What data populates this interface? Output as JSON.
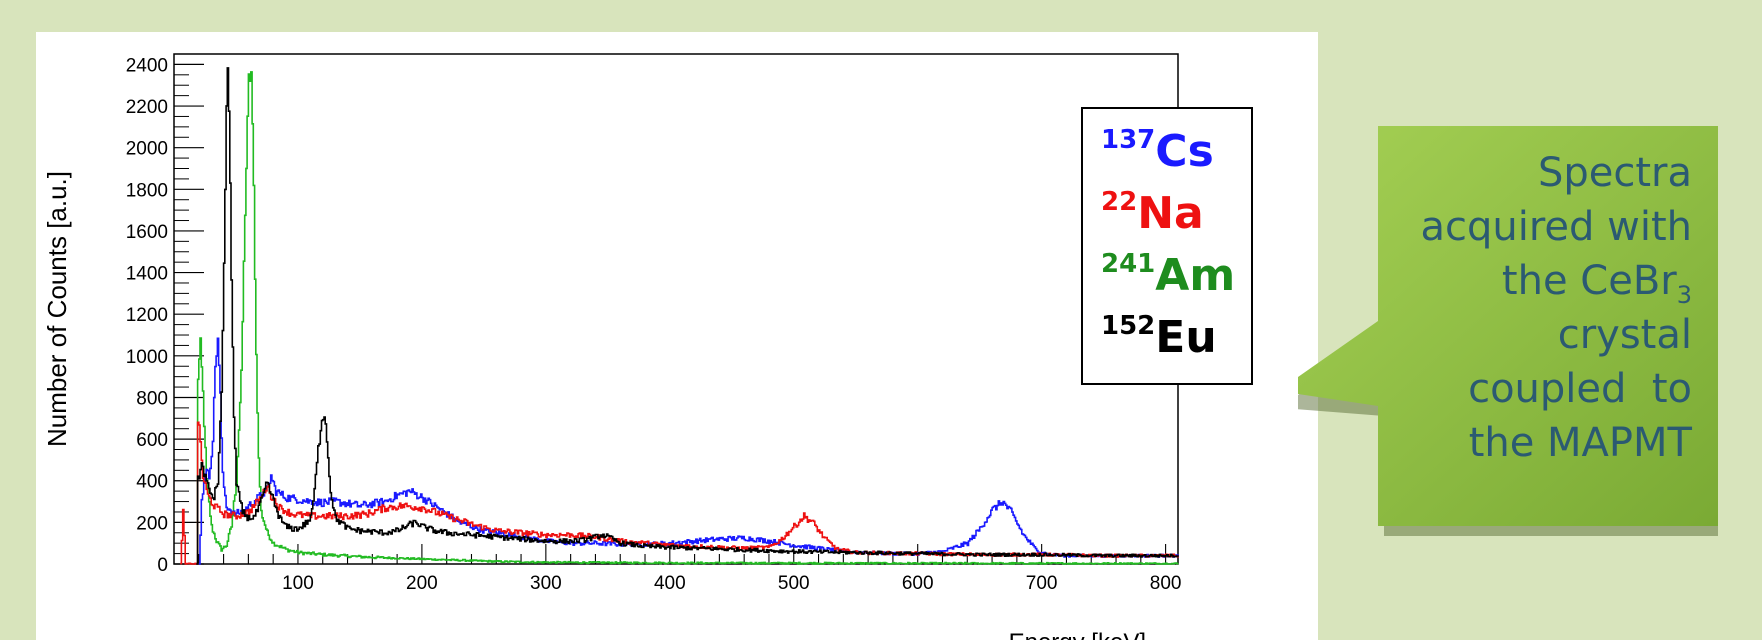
{
  "chart_data": {
    "type": "line",
    "title": "",
    "xlabel": "Energy [keV]",
    "ylabel": "Number of Counts [a.u.]",
    "xlim": [
      0,
      810
    ],
    "ylim": [
      0,
      2450
    ],
    "x_ticks": [
      100,
      200,
      300,
      400,
      500,
      600,
      700,
      800
    ],
    "y_ticks": [
      0,
      200,
      400,
      600,
      800,
      1000,
      1200,
      1400,
      1600,
      1800,
      2000,
      2200,
      2400
    ],
    "grid": false,
    "legend_position": "top-right",
    "series": [
      {
        "name": "137Cs",
        "mass": "137",
        "element": "Cs",
        "color": "#1a1aff",
        "points": [
          [
            20,
            0
          ],
          [
            22,
            300
          ],
          [
            25,
            450
          ],
          [
            28,
            420
          ],
          [
            31,
            600
          ],
          [
            33,
            950
          ],
          [
            35,
            1090
          ],
          [
            37,
            800
          ],
          [
            39,
            420
          ],
          [
            42,
            280
          ],
          [
            48,
            240
          ],
          [
            55,
            250
          ],
          [
            62,
            290
          ],
          [
            70,
            330
          ],
          [
            75,
            360
          ],
          [
            78,
            420
          ],
          [
            82,
            350
          ],
          [
            90,
            320
          ],
          [
            100,
            310
          ],
          [
            110,
            300
          ],
          [
            120,
            295
          ],
          [
            130,
            300
          ],
          [
            140,
            290
          ],
          [
            150,
            280
          ],
          [
            160,
            290
          ],
          [
            170,
            300
          ],
          [
            180,
            330
          ],
          [
            190,
            350
          ],
          [
            200,
            320
          ],
          [
            210,
            280
          ],
          [
            220,
            240
          ],
          [
            230,
            200
          ],
          [
            240,
            180
          ],
          [
            250,
            160
          ],
          [
            260,
            150
          ],
          [
            280,
            130
          ],
          [
            300,
            110
          ],
          [
            320,
            100
          ],
          [
            340,
            100
          ],
          [
            360,
            95
          ],
          [
            380,
            95
          ],
          [
            400,
            100
          ],
          [
            420,
            110
          ],
          [
            440,
            120
          ],
          [
            460,
            125
          ],
          [
            480,
            110
          ],
          [
            500,
            90
          ],
          [
            520,
            75
          ],
          [
            540,
            60
          ],
          [
            560,
            55
          ],
          [
            580,
            50
          ],
          [
            600,
            50
          ],
          [
            620,
            60
          ],
          [
            640,
            100
          ],
          [
            650,
            170
          ],
          [
            660,
            260
          ],
          [
            668,
            300
          ],
          [
            675,
            250
          ],
          [
            685,
            140
          ],
          [
            695,
            70
          ],
          [
            705,
            45
          ],
          [
            720,
            40
          ],
          [
            750,
            40
          ],
          [
            780,
            40
          ],
          [
            810,
            40
          ]
        ]
      },
      {
        "name": "22Na",
        "mass": "22",
        "element": "Na",
        "color": "#ee1111",
        "points": [
          [
            5,
            0
          ],
          [
            7,
            250
          ],
          [
            9,
            0
          ],
          [
            18,
            0
          ],
          [
            19,
            700
          ],
          [
            21,
            580
          ],
          [
            23,
            420
          ],
          [
            27,
            330
          ],
          [
            32,
            280
          ],
          [
            40,
            240
          ],
          [
            50,
            230
          ],
          [
            60,
            250
          ],
          [
            70,
            320
          ],
          [
            75,
            380
          ],
          [
            78,
            330
          ],
          [
            85,
            270
          ],
          [
            95,
            240
          ],
          [
            110,
            230
          ],
          [
            125,
            230
          ],
          [
            140,
            230
          ],
          [
            155,
            240
          ],
          [
            170,
            270
          ],
          [
            185,
            280
          ],
          [
            200,
            270
          ],
          [
            220,
            230
          ],
          [
            240,
            190
          ],
          [
            260,
            160
          ],
          [
            280,
            150
          ],
          [
            300,
            140
          ],
          [
            320,
            140
          ],
          [
            340,
            130
          ],
          [
            360,
            110
          ],
          [
            380,
            100
          ],
          [
            400,
            90
          ],
          [
            420,
            85
          ],
          [
            440,
            80
          ],
          [
            460,
            75
          ],
          [
            480,
            80
          ],
          [
            490,
            120
          ],
          [
            500,
            180
          ],
          [
            508,
            230
          ],
          [
            515,
            200
          ],
          [
            525,
            120
          ],
          [
            535,
            70
          ],
          [
            550,
            55
          ],
          [
            600,
            50
          ],
          [
            650,
            45
          ],
          [
            700,
            45
          ],
          [
            750,
            40
          ],
          [
            810,
            40
          ]
        ]
      },
      {
        "name": "241Am",
        "mass": "241",
        "element": "Am",
        "color": "#22bb22",
        "points": [
          [
            18,
            0
          ],
          [
            19,
            900
          ],
          [
            21,
            1050
          ],
          [
            23,
            820
          ],
          [
            26,
            400
          ],
          [
            30,
            180
          ],
          [
            34,
            110
          ],
          [
            38,
            70
          ],
          [
            42,
            90
          ],
          [
            46,
            180
          ],
          [
            50,
            400
          ],
          [
            54,
            900
          ],
          [
            57,
            1700
          ],
          [
            60,
            2320
          ],
          [
            62,
            2360
          ],
          [
            64,
            1800
          ],
          [
            66,
            1000
          ],
          [
            68,
            500
          ],
          [
            70,
            250
          ],
          [
            75,
            150
          ],
          [
            80,
            100
          ],
          [
            90,
            70
          ],
          [
            100,
            55
          ],
          [
            120,
            45
          ],
          [
            140,
            38
          ],
          [
            160,
            32
          ],
          [
            180,
            28
          ],
          [
            200,
            24
          ],
          [
            220,
            20
          ],
          [
            240,
            16
          ],
          [
            260,
            12
          ],
          [
            280,
            10
          ],
          [
            300,
            8
          ],
          [
            400,
            5
          ],
          [
            600,
            3
          ],
          [
            810,
            2
          ]
        ]
      },
      {
        "name": "152Eu",
        "mass": "152",
        "element": "Eu",
        "color": "#000000",
        "points": [
          [
            18,
            0
          ],
          [
            19,
            400
          ],
          [
            22,
            480
          ],
          [
            25,
            420
          ],
          [
            28,
            350
          ],
          [
            32,
            320
          ],
          [
            35,
            400
          ],
          [
            38,
            800
          ],
          [
            41,
            1800
          ],
          [
            42.5,
            2400
          ],
          [
            44,
            2200
          ],
          [
            46,
            1400
          ],
          [
            48,
            700
          ],
          [
            50,
            380
          ],
          [
            55,
            250
          ],
          [
            60,
            220
          ],
          [
            65,
            230
          ],
          [
            70,
            300
          ],
          [
            75,
            390
          ],
          [
            80,
            300
          ],
          [
            85,
            220
          ],
          [
            90,
            180
          ],
          [
            95,
            170
          ],
          [
            100,
            170
          ],
          [
            105,
            190
          ],
          [
            110,
            220
          ],
          [
            113,
            350
          ],
          [
            116,
            550
          ],
          [
            119,
            700
          ],
          [
            121,
            730
          ],
          [
            123,
            600
          ],
          [
            126,
            350
          ],
          [
            130,
            220
          ],
          [
            140,
            170
          ],
          [
            150,
            160
          ],
          [
            160,
            155
          ],
          [
            170,
            150
          ],
          [
            180,
            160
          ],
          [
            190,
            190
          ],
          [
            195,
            200
          ],
          [
            200,
            180
          ],
          [
            210,
            160
          ],
          [
            220,
            150
          ],
          [
            240,
            140
          ],
          [
            260,
            130
          ],
          [
            280,
            120
          ],
          [
            300,
            110
          ],
          [
            320,
            110
          ],
          [
            330,
            115
          ],
          [
            340,
            130
          ],
          [
            345,
            140
          ],
          [
            350,
            130
          ],
          [
            360,
            100
          ],
          [
            380,
            85
          ],
          [
            400,
            80
          ],
          [
            450,
            70
          ],
          [
            500,
            60
          ],
          [
            550,
            55
          ],
          [
            600,
            50
          ],
          [
            650,
            45
          ],
          [
            700,
            45
          ],
          [
            750,
            40
          ],
          [
            810,
            40
          ]
        ]
      }
    ]
  },
  "callout": {
    "lines": [
      "Spectra",
      "acquired with",
      "the CeBr",
      "crystal",
      "coupled  to",
      "the MAPMT"
    ],
    "subscript": "3"
  },
  "colors": {
    "background": "#d8e4bc",
    "callout_fill": "#8cbf3f",
    "callout_text": "#2b5a72"
  }
}
